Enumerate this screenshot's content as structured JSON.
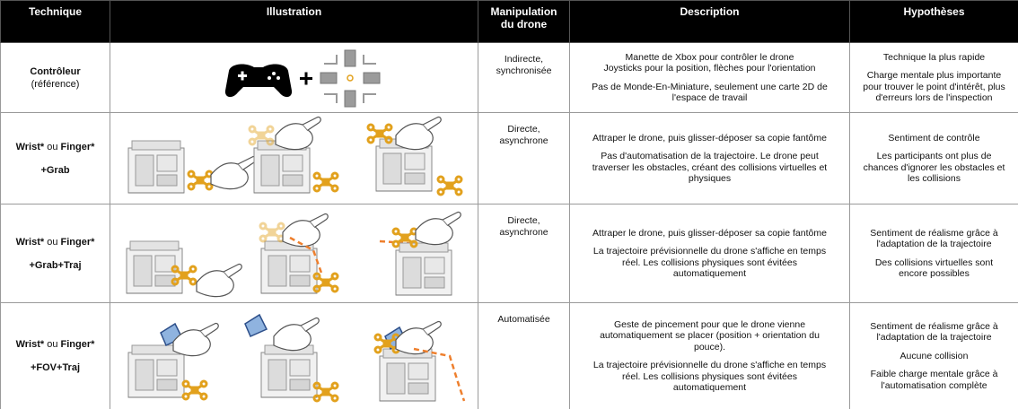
{
  "header": [
    "Technique",
    "Illustration",
    "Manipulation du drone",
    "Description",
    "Hypothèses"
  ],
  "rows": [
    {
      "technique": {
        "name": "Contrôleur",
        "note": "(référence)"
      },
      "manipulation": [
        "Indirecte,",
        "synchronisée"
      ],
      "description": [
        [
          "Manette de Xbox pour contrôler le drone",
          "Joysticks pour la position, flèches pour l'orientation"
        ],
        [
          "Pas de Monde-En-Miniature, seulement une carte 2D de",
          "l'espace de travail"
        ]
      ],
      "hypotheses": [
        [
          "Technique la plus rapide"
        ],
        [
          "Charge mentale plus importante",
          "pour trouver le point d'intérêt, plus",
          "d'erreurs lors de l'inspection"
        ]
      ]
    },
    {
      "technique": {
        "wrist": "Wrist*",
        "or": "ou",
        "finger": "Finger*",
        "variant": "+Grab"
      },
      "manipulation": [
        "Directe,",
        "asynchrone"
      ],
      "description": [
        [
          "Attraper le drone, puis glisser-déposer sa copie fantôme"
        ],
        [
          "Pas d'automatisation de la trajectoire. Le drone peut",
          "traverser les obstacles, créant des collisions virtuelles et",
          "physiques"
        ]
      ],
      "hypotheses": [
        [
          "Sentiment de contrôle"
        ],
        [
          "Les participants ont plus de",
          "chances d'ignorer les obstacles et",
          "les collisions"
        ]
      ]
    },
    {
      "technique": {
        "wrist": "Wrist*",
        "or": "ou",
        "finger": "Finger*",
        "variant": "+Grab+Traj"
      },
      "manipulation": [
        "Directe,",
        "asynchrone"
      ],
      "description": [
        [
          "Attraper le drone, puis glisser-déposer sa copie fantôme"
        ],
        [
          "La trajectoire prévisionnelle du drone s'affiche en temps",
          "réel. Les collisions physiques sont évitées",
          "automatiquement"
        ]
      ],
      "hypotheses": [
        [
          "Sentiment de réalisme grâce à",
          "l'adaptation de la trajectoire"
        ],
        [
          "Des collisions virtuelles sont",
          "encore possibles"
        ]
      ]
    },
    {
      "technique": {
        "wrist": "Wrist*",
        "or": "ou",
        "finger": "Finger*",
        "variant": "+FOV+Traj"
      },
      "manipulation": [
        "Automatisée"
      ],
      "description": [
        [
          "Geste de pincement pour que le drone vienne",
          "automatiquement se placer (position + orientation du",
          "pouce)."
        ],
        [
          "La trajectoire prévisionnelle du drone s'affiche en temps",
          "réel. Les collisions physiques sont évitées",
          "automatiquement"
        ]
      ],
      "hypotheses": [
        [
          "Sentiment de réalisme grâce à",
          "l'adaptation de la trajectoire"
        ],
        [
          "Aucune collision"
        ],
        [
          "Faible charge mentale grâce à",
          "l'automatisation complète"
        ]
      ]
    }
  ]
}
